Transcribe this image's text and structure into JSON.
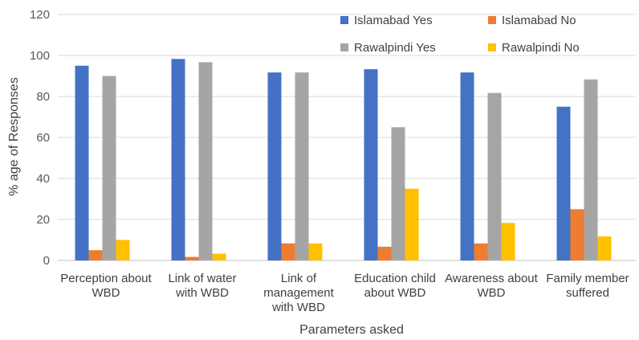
{
  "chart_data": {
    "type": "bar",
    "title": "",
    "xlabel": "Parameters asked",
    "ylabel": "% age of Responses",
    "ylim": [
      0,
      120
    ],
    "yticks": [
      0,
      20,
      40,
      60,
      80,
      100,
      120
    ],
    "grid": true,
    "legend": "top-right",
    "categories": [
      [
        "Perception about",
        "WBD"
      ],
      [
        "Link of water",
        "with WBD"
      ],
      [
        "Link of",
        "management",
        "with WBD"
      ],
      [
        "Education child",
        "about WBD"
      ],
      [
        "Awareness about",
        "WBD"
      ],
      [
        "Family member",
        "suffered"
      ]
    ],
    "series": [
      {
        "name": "Islamabad Yes",
        "color": "#4472C4",
        "values": [
          95,
          98.3,
          91.7,
          93.3,
          91.7,
          75
        ]
      },
      {
        "name": "Islamabad No",
        "color": "#ED7D31",
        "values": [
          5,
          1.7,
          8.3,
          6.7,
          8.3,
          25
        ]
      },
      {
        "name": "Rawalpindi Yes",
        "color": "#A5A5A5",
        "values": [
          90,
          96.7,
          91.7,
          65,
          81.7,
          88.3
        ]
      },
      {
        "name": "Rawalpindi No",
        "color": "#FFC000",
        "values": [
          10,
          3.3,
          8.3,
          35,
          18.3,
          11.7
        ]
      }
    ]
  }
}
